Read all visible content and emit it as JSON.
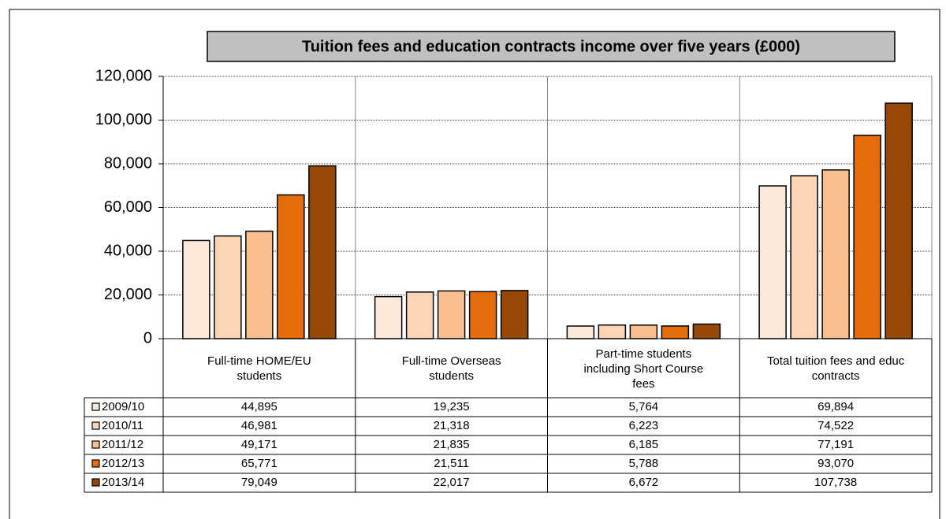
{
  "chart_data": {
    "type": "bar",
    "title": "Tuition fees and education contracts income over five years (£000)",
    "categories": [
      "Full-time HOME/EU students",
      "Full-time Overseas students",
      "Part-time students including Short Course fees",
      "Total tuition fees and educ contracts"
    ],
    "series": [
      {
        "name": "2009/10",
        "color": "#fde9d9",
        "values": [
          44895,
          19235,
          5764,
          69894
        ],
        "value_labels": [
          "44,895",
          "19,235",
          "5,764",
          "69,894"
        ]
      },
      {
        "name": "2010/11",
        "color": "#fbd5b5",
        "values": [
          46981,
          21318,
          6223,
          74522
        ],
        "value_labels": [
          "46,981",
          "21,318",
          "6,223",
          "74,522"
        ]
      },
      {
        "name": "2011/12",
        "color": "#fabf8f",
        "values": [
          49171,
          21835,
          6185,
          77191
        ],
        "value_labels": [
          "49,171",
          "21,835",
          "6,185",
          "77,191"
        ]
      },
      {
        "name": "2012/13",
        "color": "#e46c0a",
        "values": [
          65771,
          21511,
          5788,
          93070
        ],
        "value_labels": [
          "65,771",
          "21,511",
          "5,788",
          "93,070"
        ]
      },
      {
        "name": "2013/14",
        "color": "#974706",
        "values": [
          79049,
          22017,
          6672,
          107738
        ],
        "value_labels": [
          "79,049",
          "22,017",
          "6,672",
          "107,738"
        ]
      }
    ],
    "ylim": [
      0,
      120000
    ],
    "yticks": [
      0,
      {
        "value": 20000,
        "label": "20,000"
      },
      {
        "value": 40000,
        "label": "40,000"
      },
      {
        "value": 60000,
        "label": "60,000"
      },
      {
        "value": 80000,
        "label": "80,000"
      },
      {
        "value": 100000,
        "label": "100,000"
      },
      {
        "value": 120000,
        "label": "120,000"
      }
    ],
    "grid": true
  }
}
